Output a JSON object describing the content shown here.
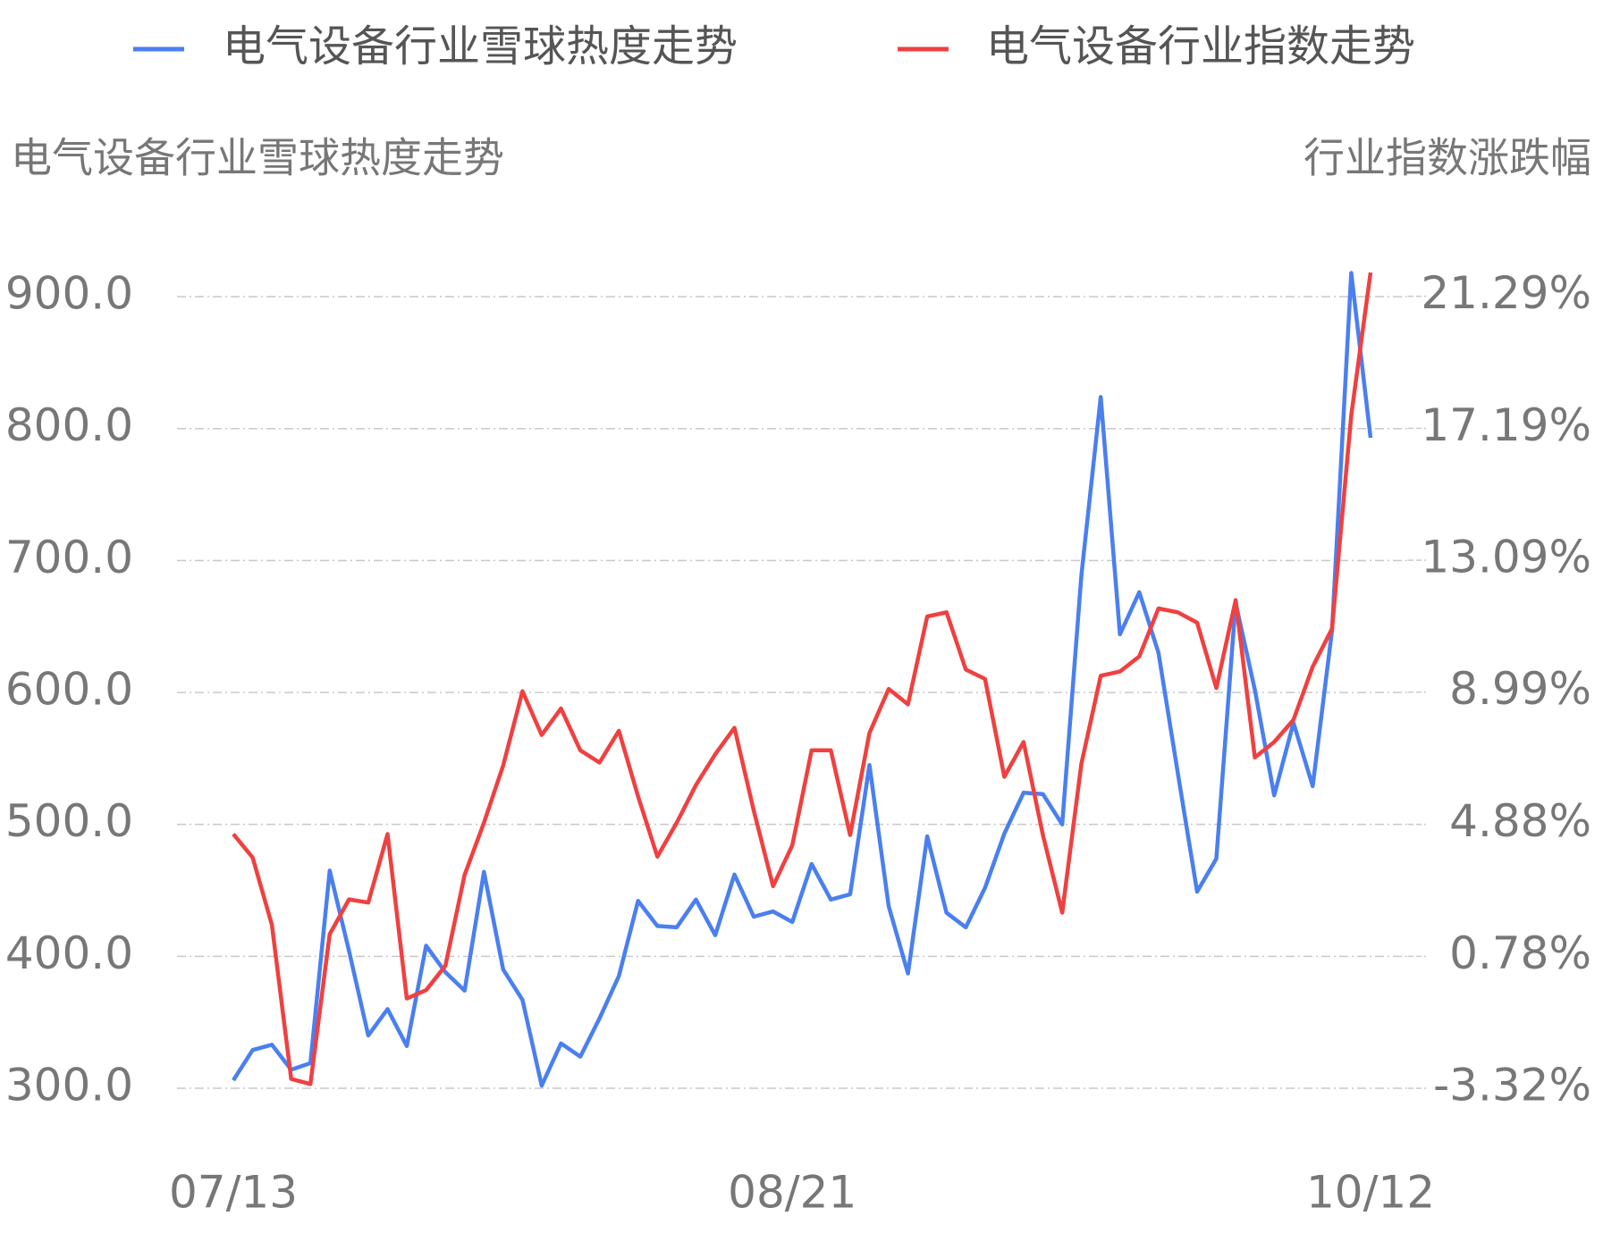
{
  "chart_data": {
    "type": "line",
    "y_label": "电气设备行业雪球热度走势",
    "y2_label": "行业指数涨跌幅",
    "categories": [
      "07/13",
      null,
      null,
      null,
      null,
      null,
      null,
      null,
      null,
      null,
      null,
      null,
      null,
      null,
      null,
      null,
      null,
      null,
      null,
      null,
      null,
      null,
      null,
      null,
      null,
      null,
      null,
      null,
      null,
      "08/21",
      null,
      null,
      null,
      null,
      null,
      null,
      null,
      null,
      null,
      null,
      null,
      null,
      null,
      null,
      null,
      null,
      null,
      null,
      null,
      null,
      null,
      null,
      null,
      null,
      null,
      null,
      null,
      null,
      null,
      "10/12"
    ],
    "series": [
      {
        "name": "电气设备行业雪球热度走势",
        "color": "#4a7ff0",
        "axis": "y",
        "values": [
          306,
          329,
          333,
          314,
          319,
          465,
          404,
          340,
          360,
          332,
          408,
          388,
          374,
          464,
          390,
          367,
          302,
          334,
          324,
          353,
          385,
          442,
          423,
          422,
          443,
          416,
          462,
          430,
          434,
          426,
          470,
          443,
          447,
          545,
          438,
          387,
          491,
          433,
          422,
          452,
          493,
          524,
          523,
          500,
          689,
          824,
          644,
          676,
          630,
          539,
          449,
          474,
          668,
          602,
          522,
          577,
          529,
          647,
          918,
          793
        ]
      },
      {
        "name": "电气设备行业指数走势",
        "color": "#f04040",
        "axis": "y2",
        "values": [
          4.58,
          3.85,
          1.76,
          -3.03,
          -3.19,
          1.47,
          2.55,
          2.45,
          4.58,
          -0.53,
          -0.27,
          0.49,
          3.31,
          4.93,
          6.71,
          9.02,
          7.66,
          8.48,
          7.18,
          6.8,
          7.79,
          5.75,
          3.88,
          4.93,
          6.1,
          7.06,
          7.88,
          5.31,
          2.96,
          4.23,
          7.18,
          7.18,
          4.55,
          7.72,
          9.09,
          8.61,
          11.34,
          11.47,
          9.69,
          9.4,
          6.36,
          7.44,
          4.55,
          2.14,
          6.77,
          9.5,
          9.63,
          10.1,
          11.59,
          11.47,
          11.15,
          9.12,
          11.85,
          6.96,
          7.44,
          8.13,
          9.78,
          10.96,
          17.59,
          22.03
        ]
      }
    ],
    "ylim": [
      300,
      920
    ],
    "yticks": [
      {
        "value": 300,
        "label": "300.0"
      },
      {
        "value": 400,
        "label": "400.0"
      },
      {
        "value": 500,
        "label": "500.0"
      },
      {
        "value": 600,
        "label": "600.0"
      },
      {
        "value": 700,
        "label": "700.0"
      },
      {
        "value": 800,
        "label": "800.0"
      },
      {
        "value": 900,
        "label": "900.0"
      }
    ],
    "y2lim": [
      -3.32,
      22.1
    ],
    "y2ticks": [
      {
        "value": -3.32,
        "label": "-3.32%"
      },
      {
        "value": 0.78,
        "label": "0.78%"
      },
      {
        "value": 4.88,
        "label": "4.88%"
      },
      {
        "value": 8.99,
        "label": "8.99%"
      },
      {
        "value": 13.09,
        "label": "13.09%"
      },
      {
        "value": 17.19,
        "label": "17.19%"
      },
      {
        "value": 21.29,
        "label": "21.29%"
      }
    ],
    "grid": true,
    "legend": "top"
  }
}
